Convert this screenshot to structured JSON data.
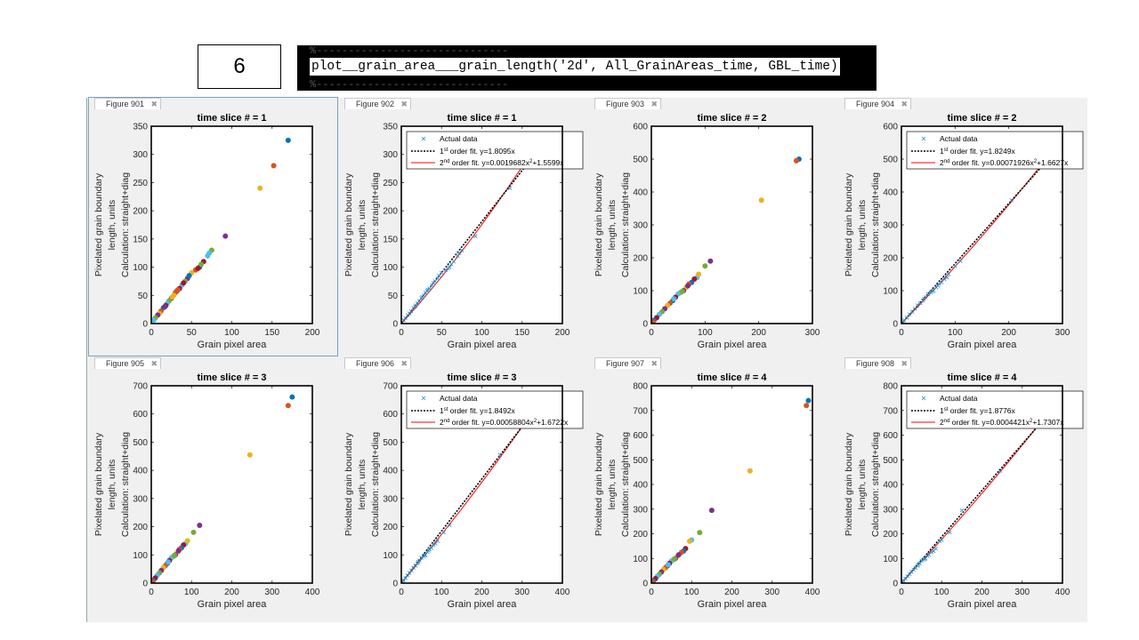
{
  "slide": {
    "number": "6"
  },
  "code": {
    "dash_line": "%------------------------------",
    "command": "plot__grain_area___grain_length('2d', All_GrainAreas_time, GBL_time)"
  },
  "colors": [
    "#0072BD",
    "#D95319",
    "#EDB120",
    "#7E2F8E",
    "#77AC30",
    "#4DBEEE",
    "#A2142F"
  ],
  "labels": {
    "xlabel": "Grain pixel area",
    "ylabel_lines": [
      "Pixelated grain boundary",
      "length, units",
      "Calculation: straight+diag"
    ],
    "legend_actual": "Actual data",
    "legend_first_prefix": "1",
    "legend_first_sup": "st",
    "legend_second_prefix": "2",
    "legend_second_sup": "nd"
  },
  "figures": [
    {
      "tab": "Figure 901",
      "title": "time slice # = 1",
      "type": "scatter",
      "xlim": [
        0,
        200
      ],
      "ylim": [
        0,
        350
      ],
      "xticks": [
        0,
        50,
        100,
        150,
        200
      ],
      "yticks": [
        0,
        50,
        100,
        150,
        200,
        250,
        300,
        350
      ],
      "points": [
        [
          170,
          325
        ],
        [
          152,
          280
        ],
        [
          135,
          240
        ],
        [
          92,
          155
        ],
        [
          75,
          130
        ],
        [
          70,
          120
        ],
        [
          65,
          110
        ],
        [
          60,
          100
        ],
        [
          55,
          95
        ],
        [
          50,
          90
        ],
        [
          45,
          80
        ],
        [
          42,
          75
        ],
        [
          38,
          68
        ],
        [
          35,
          62
        ],
        [
          32,
          58
        ],
        [
          30,
          55
        ],
        [
          28,
          50
        ],
        [
          25,
          45
        ],
        [
          22,
          40
        ],
        [
          20,
          36
        ],
        [
          18,
          32
        ],
        [
          15,
          28
        ],
        [
          12,
          22
        ],
        [
          10,
          18
        ],
        [
          8,
          15
        ],
        [
          5,
          10
        ],
        [
          3,
          6
        ],
        [
          40,
          72
        ],
        [
          47,
          85
        ],
        [
          33,
          60
        ],
        [
          26,
          47
        ],
        [
          17,
          30
        ],
        [
          62,
          105
        ],
        [
          72,
          125
        ],
        [
          58,
          98
        ]
      ]
    },
    {
      "tab": "Figure 902",
      "title": "time slice # = 1",
      "type": "fit",
      "xlim": [
        0,
        200
      ],
      "ylim": [
        0,
        350
      ],
      "xticks": [
        0,
        50,
        100,
        150,
        200
      ],
      "yticks": [
        0,
        50,
        100,
        150,
        200,
        250,
        300,
        350
      ],
      "first_fit": "order fit. y=1.8095x",
      "second_fit_a": "order fit. y=0.0019682x",
      "second_fit_b": "+1.5599x",
      "a1": 1.8095,
      "a2": 0.0019682,
      "b2": 1.5599,
      "points": [
        [
          170,
          325
        ],
        [
          152,
          280
        ],
        [
          135,
          240
        ],
        [
          92,
          155
        ],
        [
          75,
          130
        ],
        [
          70,
          120
        ],
        [
          65,
          110
        ],
        [
          60,
          100
        ],
        [
          55,
          95
        ],
        [
          50,
          90
        ],
        [
          45,
          80
        ],
        [
          42,
          75
        ],
        [
          38,
          68
        ],
        [
          35,
          62
        ],
        [
          32,
          58
        ],
        [
          30,
          55
        ],
        [
          28,
          50
        ],
        [
          25,
          45
        ],
        [
          22,
          40
        ],
        [
          20,
          36
        ],
        [
          18,
          32
        ],
        [
          15,
          28
        ],
        [
          12,
          22
        ],
        [
          10,
          18
        ],
        [
          8,
          15
        ],
        [
          5,
          10
        ],
        [
          3,
          6
        ],
        [
          40,
          72
        ],
        [
          47,
          85
        ],
        [
          33,
          60
        ],
        [
          26,
          47
        ],
        [
          17,
          30
        ],
        [
          62,
          105
        ],
        [
          72,
          125
        ],
        [
          58,
          98
        ]
      ]
    },
    {
      "tab": "Figure 903",
      "title": "time slice # = 2",
      "type": "scatter",
      "xlim": [
        0,
        300
      ],
      "ylim": [
        0,
        600
      ],
      "xticks": [
        0,
        100,
        200,
        300
      ],
      "yticks": [
        0,
        100,
        200,
        300,
        400,
        500,
        600
      ],
      "points": [
        [
          275,
          500
        ],
        [
          270,
          495
        ],
        [
          205,
          375
        ],
        [
          110,
          190
        ],
        [
          100,
          175
        ],
        [
          85,
          140
        ],
        [
          80,
          135
        ],
        [
          75,
          125
        ],
        [
          70,
          120
        ],
        [
          65,
          110
        ],
        [
          60,
          100
        ],
        [
          55,
          95
        ],
        [
          50,
          90
        ],
        [
          45,
          80
        ],
        [
          40,
          70
        ],
        [
          35,
          62
        ],
        [
          30,
          55
        ],
        [
          25,
          45
        ],
        [
          20,
          36
        ],
        [
          15,
          28
        ],
        [
          10,
          18
        ],
        [
          5,
          10
        ],
        [
          3,
          6
        ],
        [
          88,
          150
        ],
        [
          68,
          115
        ],
        [
          58,
          98
        ],
        [
          42,
          75
        ]
      ]
    },
    {
      "tab": "Figure 904",
      "title": "time slice # = 2",
      "type": "fit",
      "xlim": [
        0,
        300
      ],
      "ylim": [
        0,
        600
      ],
      "xticks": [
        0,
        100,
        200,
        300
      ],
      "yticks": [
        0,
        100,
        200,
        300,
        400,
        500,
        600
      ],
      "first_fit": "order fit. y=1.8249x",
      "second_fit_a": "order fit. y=0.00071926x",
      "second_fit_b": "+1.6627x",
      "a1": 1.8249,
      "a2": 0.00071926,
      "b2": 1.6627,
      "points": [
        [
          275,
          500
        ],
        [
          270,
          495
        ],
        [
          205,
          375
        ],
        [
          110,
          190
        ],
        [
          100,
          175
        ],
        [
          85,
          140
        ],
        [
          80,
          135
        ],
        [
          75,
          125
        ],
        [
          70,
          120
        ],
        [
          65,
          110
        ],
        [
          60,
          100
        ],
        [
          55,
          95
        ],
        [
          50,
          90
        ],
        [
          45,
          80
        ],
        [
          40,
          70
        ],
        [
          35,
          62
        ],
        [
          30,
          55
        ],
        [
          25,
          45
        ],
        [
          20,
          36
        ],
        [
          15,
          28
        ],
        [
          10,
          18
        ],
        [
          5,
          10
        ],
        [
          3,
          6
        ],
        [
          88,
          150
        ],
        [
          68,
          115
        ],
        [
          58,
          98
        ],
        [
          42,
          75
        ]
      ]
    },
    {
      "tab": "Figure 905",
      "title": "time slice # = 3",
      "type": "scatter",
      "xlim": [
        0,
        400
      ],
      "ylim": [
        0,
        700
      ],
      "xticks": [
        0,
        100,
        200,
        300,
        400
      ],
      "yticks": [
        0,
        100,
        200,
        300,
        400,
        500,
        600,
        700
      ],
      "points": [
        [
          350,
          660
        ],
        [
          340,
          630
        ],
        [
          245,
          455
        ],
        [
          120,
          205
        ],
        [
          105,
          180
        ],
        [
          85,
          140
        ],
        [
          80,
          135
        ],
        [
          75,
          125
        ],
        [
          70,
          120
        ],
        [
          65,
          110
        ],
        [
          60,
          100
        ],
        [
          55,
          95
        ],
        [
          50,
          90
        ],
        [
          45,
          80
        ],
        [
          40,
          70
        ],
        [
          35,
          62
        ],
        [
          30,
          55
        ],
        [
          25,
          45
        ],
        [
          20,
          36
        ],
        [
          15,
          28
        ],
        [
          10,
          18
        ],
        [
          5,
          10
        ],
        [
          3,
          6
        ],
        [
          90,
          150
        ],
        [
          68,
          115
        ],
        [
          58,
          98
        ],
        [
          42,
          75
        ]
      ]
    },
    {
      "tab": "Figure 906",
      "title": "time slice # = 3",
      "type": "fit",
      "xlim": [
        0,
        400
      ],
      "ylim": [
        0,
        700
      ],
      "xticks": [
        0,
        100,
        200,
        300,
        400
      ],
      "yticks": [
        0,
        100,
        200,
        300,
        400,
        500,
        600,
        700
      ],
      "first_fit": "order fit. y=1.8492x",
      "second_fit_a": "order fit. y=0.00058804x",
      "second_fit_b": "+1.6722x",
      "a1": 1.8492,
      "a2": 0.00058804,
      "b2": 1.6722,
      "points": [
        [
          350,
          660
        ],
        [
          340,
          630
        ],
        [
          245,
          455
        ],
        [
          120,
          205
        ],
        [
          105,
          180
        ],
        [
          85,
          140
        ],
        [
          80,
          135
        ],
        [
          75,
          125
        ],
        [
          70,
          120
        ],
        [
          65,
          110
        ],
        [
          60,
          100
        ],
        [
          55,
          95
        ],
        [
          50,
          90
        ],
        [
          45,
          80
        ],
        [
          40,
          70
        ],
        [
          35,
          62
        ],
        [
          30,
          55
        ],
        [
          25,
          45
        ],
        [
          20,
          36
        ],
        [
          15,
          28
        ],
        [
          10,
          18
        ],
        [
          5,
          10
        ],
        [
          3,
          6
        ],
        [
          90,
          150
        ],
        [
          68,
          115
        ],
        [
          58,
          98
        ],
        [
          42,
          75
        ]
      ]
    },
    {
      "tab": "Figure 907",
      "title": "time slice # = 4",
      "type": "scatter",
      "xlim": [
        0,
        400
      ],
      "ylim": [
        0,
        800
      ],
      "xticks": [
        0,
        100,
        200,
        300,
        400
      ],
      "yticks": [
        0,
        100,
        200,
        300,
        400,
        500,
        600,
        700,
        800
      ],
      "points": [
        [
          390,
          740
        ],
        [
          385,
          720
        ],
        [
          245,
          455
        ],
        [
          150,
          295
        ],
        [
          120,
          205
        ],
        [
          100,
          175
        ],
        [
          85,
          140
        ],
        [
          80,
          130
        ],
        [
          75,
          125
        ],
        [
          65,
          110
        ],
        [
          60,
          100
        ],
        [
          55,
          95
        ],
        [
          50,
          90
        ],
        [
          45,
          80
        ],
        [
          40,
          70
        ],
        [
          35,
          62
        ],
        [
          30,
          55
        ],
        [
          25,
          45
        ],
        [
          20,
          36
        ],
        [
          15,
          28
        ],
        [
          10,
          18
        ],
        [
          5,
          10
        ],
        [
          3,
          6
        ],
        [
          95,
          170
        ],
        [
          68,
          115
        ],
        [
          58,
          98
        ],
        [
          42,
          75
        ]
      ]
    },
    {
      "tab": "Figure 908",
      "title": "time slice # = 4",
      "type": "fit",
      "xlim": [
        0,
        400
      ],
      "ylim": [
        0,
        800
      ],
      "xticks": [
        0,
        100,
        200,
        300,
        400
      ],
      "yticks": [
        0,
        100,
        200,
        300,
        400,
        500,
        600,
        700,
        800
      ],
      "first_fit": "order fit. y=1.8776x",
      "second_fit_a": "order fit. y=0.0004421x",
      "second_fit_b": "+1.7307x",
      "a1": 1.8776,
      "a2": 0.0004421,
      "b2": 1.7307,
      "points": [
        [
          390,
          740
        ],
        [
          385,
          720
        ],
        [
          245,
          455
        ],
        [
          150,
          295
        ],
        [
          120,
          205
        ],
        [
          100,
          175
        ],
        [
          85,
          140
        ],
        [
          80,
          130
        ],
        [
          75,
          125
        ],
        [
          65,
          110
        ],
        [
          60,
          100
        ],
        [
          55,
          95
        ],
        [
          50,
          90
        ],
        [
          45,
          80
        ],
        [
          40,
          70
        ],
        [
          35,
          62
        ],
        [
          30,
          55
        ],
        [
          25,
          45
        ],
        [
          20,
          36
        ],
        [
          15,
          28
        ],
        [
          10,
          18
        ],
        [
          5,
          10
        ],
        [
          3,
          6
        ],
        [
          95,
          170
        ],
        [
          68,
          115
        ],
        [
          58,
          98
        ],
        [
          42,
          75
        ]
      ]
    }
  ],
  "chart_data": [
    {
      "type": "scatter",
      "title": "time slice # = 1",
      "xlabel": "Grain pixel area",
      "ylabel": "Pixelated grain boundary length, units Calculation: straight+diag",
      "xlim": [
        0,
        200
      ],
      "ylim": [
        0,
        350
      ]
    },
    {
      "type": "scatter",
      "title": "time slice # = 1",
      "xlabel": "Grain pixel area",
      "ylabel": "Pixelated grain boundary length, units Calculation: straight+diag",
      "xlim": [
        0,
        200
      ],
      "ylim": [
        0,
        350
      ],
      "fits": [
        "y=1.8095x",
        "y=0.0019682x^2+1.5599x"
      ]
    },
    {
      "type": "scatter",
      "title": "time slice # = 2",
      "xlim": [
        0,
        300
      ],
      "ylim": [
        0,
        600
      ]
    },
    {
      "type": "scatter",
      "title": "time slice # = 2",
      "xlim": [
        0,
        300
      ],
      "ylim": [
        0,
        600
      ],
      "fits": [
        "y=1.8249x",
        "y=0.00071926x^2+1.6627x"
      ]
    },
    {
      "type": "scatter",
      "title": "time slice # = 3",
      "xlim": [
        0,
        400
      ],
      "ylim": [
        0,
        700
      ]
    },
    {
      "type": "scatter",
      "title": "time slice # = 3",
      "xlim": [
        0,
        400
      ],
      "ylim": [
        0,
        700
      ],
      "fits": [
        "y=1.8492x",
        "y=0.00058804x^2+1.6722x"
      ]
    },
    {
      "type": "scatter",
      "title": "time slice # = 4",
      "xlim": [
        0,
        400
      ],
      "ylim": [
        0,
        800
      ]
    },
    {
      "type": "scatter",
      "title": "time slice # = 4",
      "xlim": [
        0,
        400
      ],
      "ylim": [
        0,
        800
      ],
      "fits": [
        "y=1.8776x",
        "y=0.0004421x^2+1.7307x"
      ]
    }
  ]
}
